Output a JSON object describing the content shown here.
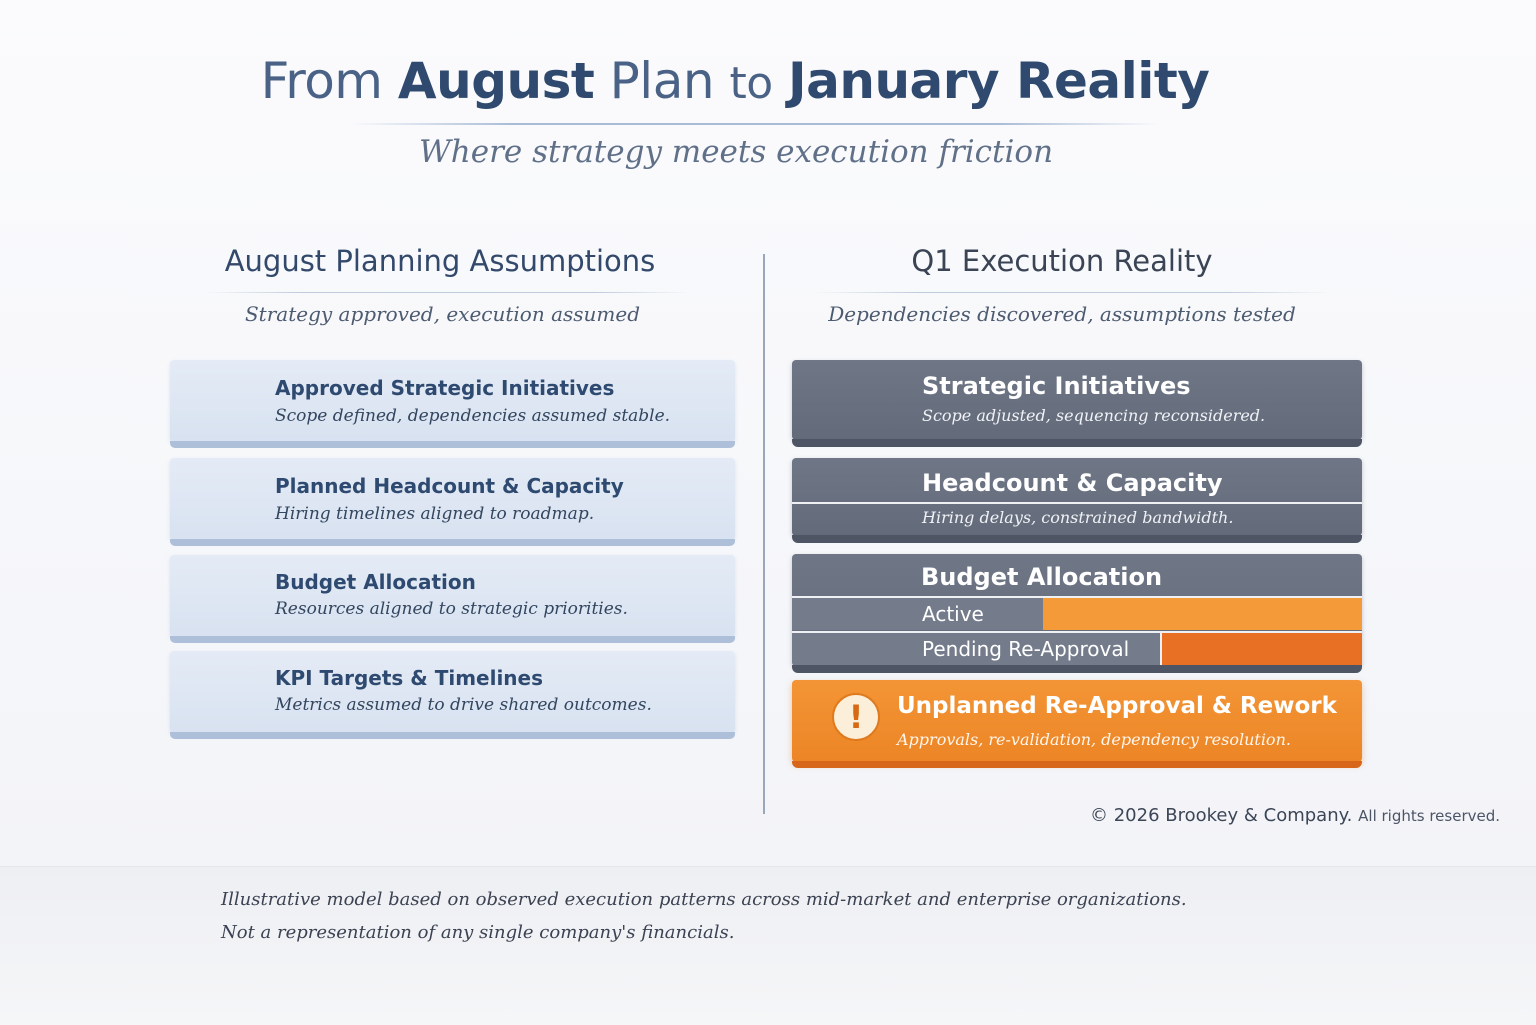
{
  "header": {
    "title_prefix": "From",
    "title_emph1": "August",
    "title_mid": "Plan",
    "title_to": "to",
    "title_emph2": "January Reality",
    "subtitle": "Where strategy meets execution friction"
  },
  "left": {
    "title": "August Planning Assumptions",
    "subtitle": "Strategy approved, execution assumed",
    "cards": [
      {
        "title": "Approved Strategic Initiatives",
        "desc": "Scope defined, dependencies assumed stable."
      },
      {
        "title": "Planned Headcount & Capacity",
        "desc": "Hiring timelines aligned to roadmap."
      },
      {
        "title": "Budget Allocation",
        "desc": "Resources aligned to strategic priorities."
      },
      {
        "title": "KPI Targets & Timelines",
        "desc": "Metrics assumed to drive shared outcomes."
      }
    ]
  },
  "right": {
    "title": "Q1 Execution Reality",
    "subtitle": "Dependencies discovered, assumptions tested",
    "cards": [
      {
        "title": "Strategic Initiatives",
        "desc": "Scope adjusted, sequencing reconsidered."
      },
      {
        "title": "Headcount & Capacity",
        "desc": "Hiring delays, constrained bandwidth."
      }
    ],
    "budget": {
      "title": "Budget Allocation",
      "rows": [
        {
          "label": "Active",
          "orange_share": 0.56,
          "color": "#f59a38"
        },
        {
          "label": "Pending Re-Approval",
          "orange_share": 0.35,
          "color": "#e87024"
        }
      ]
    },
    "warning": {
      "icon": "exclamation-icon",
      "symbol": "!",
      "title": "Unplanned Re-Approval & Rework",
      "desc": "Approvals, re-validation, dependency resolution."
    }
  },
  "footer": {
    "copyright_main": "© 2026 Brookey & Company.",
    "copyright_rights": "All rights reserved.",
    "note_line1": "Illustrative model based on observed execution patterns across mid-market and enterprise organizations.",
    "note_line2": "Not a representation of any single company's financials."
  },
  "colors": {
    "navy": "#2f4a6e",
    "slate": "#6a7282",
    "orange": "#f39536",
    "dark_orange": "#e87024",
    "light_card": "#dde6f3"
  }
}
